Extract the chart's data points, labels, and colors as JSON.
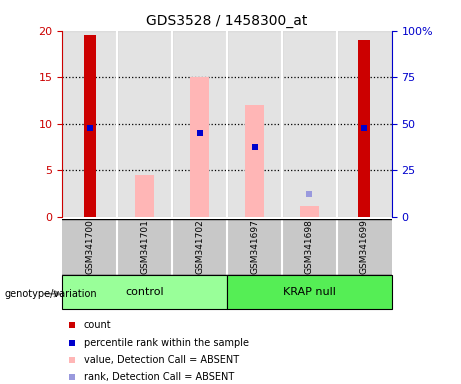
{
  "title": "GDS3528 / 1458300_at",
  "samples": [
    "GSM341700",
    "GSM341701",
    "GSM341702",
    "GSM341697",
    "GSM341698",
    "GSM341699"
  ],
  "red_bars": [
    19.5,
    0,
    0,
    0,
    0,
    19.0
  ],
  "blue_squares_left_axis": [
    9.5,
    null,
    9.0,
    7.5,
    null,
    9.5
  ],
  "pink_bars": [
    0,
    4.5,
    15.0,
    12.0,
    1.2,
    0
  ],
  "lightblue_squares_left_axis": [
    null,
    null,
    9.0,
    7.5,
    2.5,
    null
  ],
  "red_bar_color": "#cc0000",
  "blue_sq_color": "#0000cc",
  "pink_bar_color": "#ffb6b6",
  "lightblue_sq_color": "#9999dd",
  "control_color": "#99ff99",
  "krap_color": "#55ee55",
  "left_axis_color": "#cc0000",
  "right_axis_color": "#0000cc",
  "ylim_left": [
    0,
    20
  ],
  "yticks_left": [
    0,
    5,
    10,
    15,
    20
  ],
  "ytick_labels_right": [
    "0",
    "25",
    "50",
    "75",
    "100%"
  ],
  "red_bar_width": 0.22,
  "pink_bar_width": 0.35,
  "blue_sq_size": 25,
  "lightblue_sq_size": 20,
  "sample_box_color": "#c8c8c8",
  "legend_items": [
    {
      "label": "count",
      "color": "#cc0000"
    },
    {
      "label": "percentile rank within the sample",
      "color": "#0000cc"
    },
    {
      "label": "value, Detection Call = ABSENT",
      "color": "#ffb6b6"
    },
    {
      "label": "rank, Detection Call = ABSENT",
      "color": "#9999dd"
    }
  ]
}
